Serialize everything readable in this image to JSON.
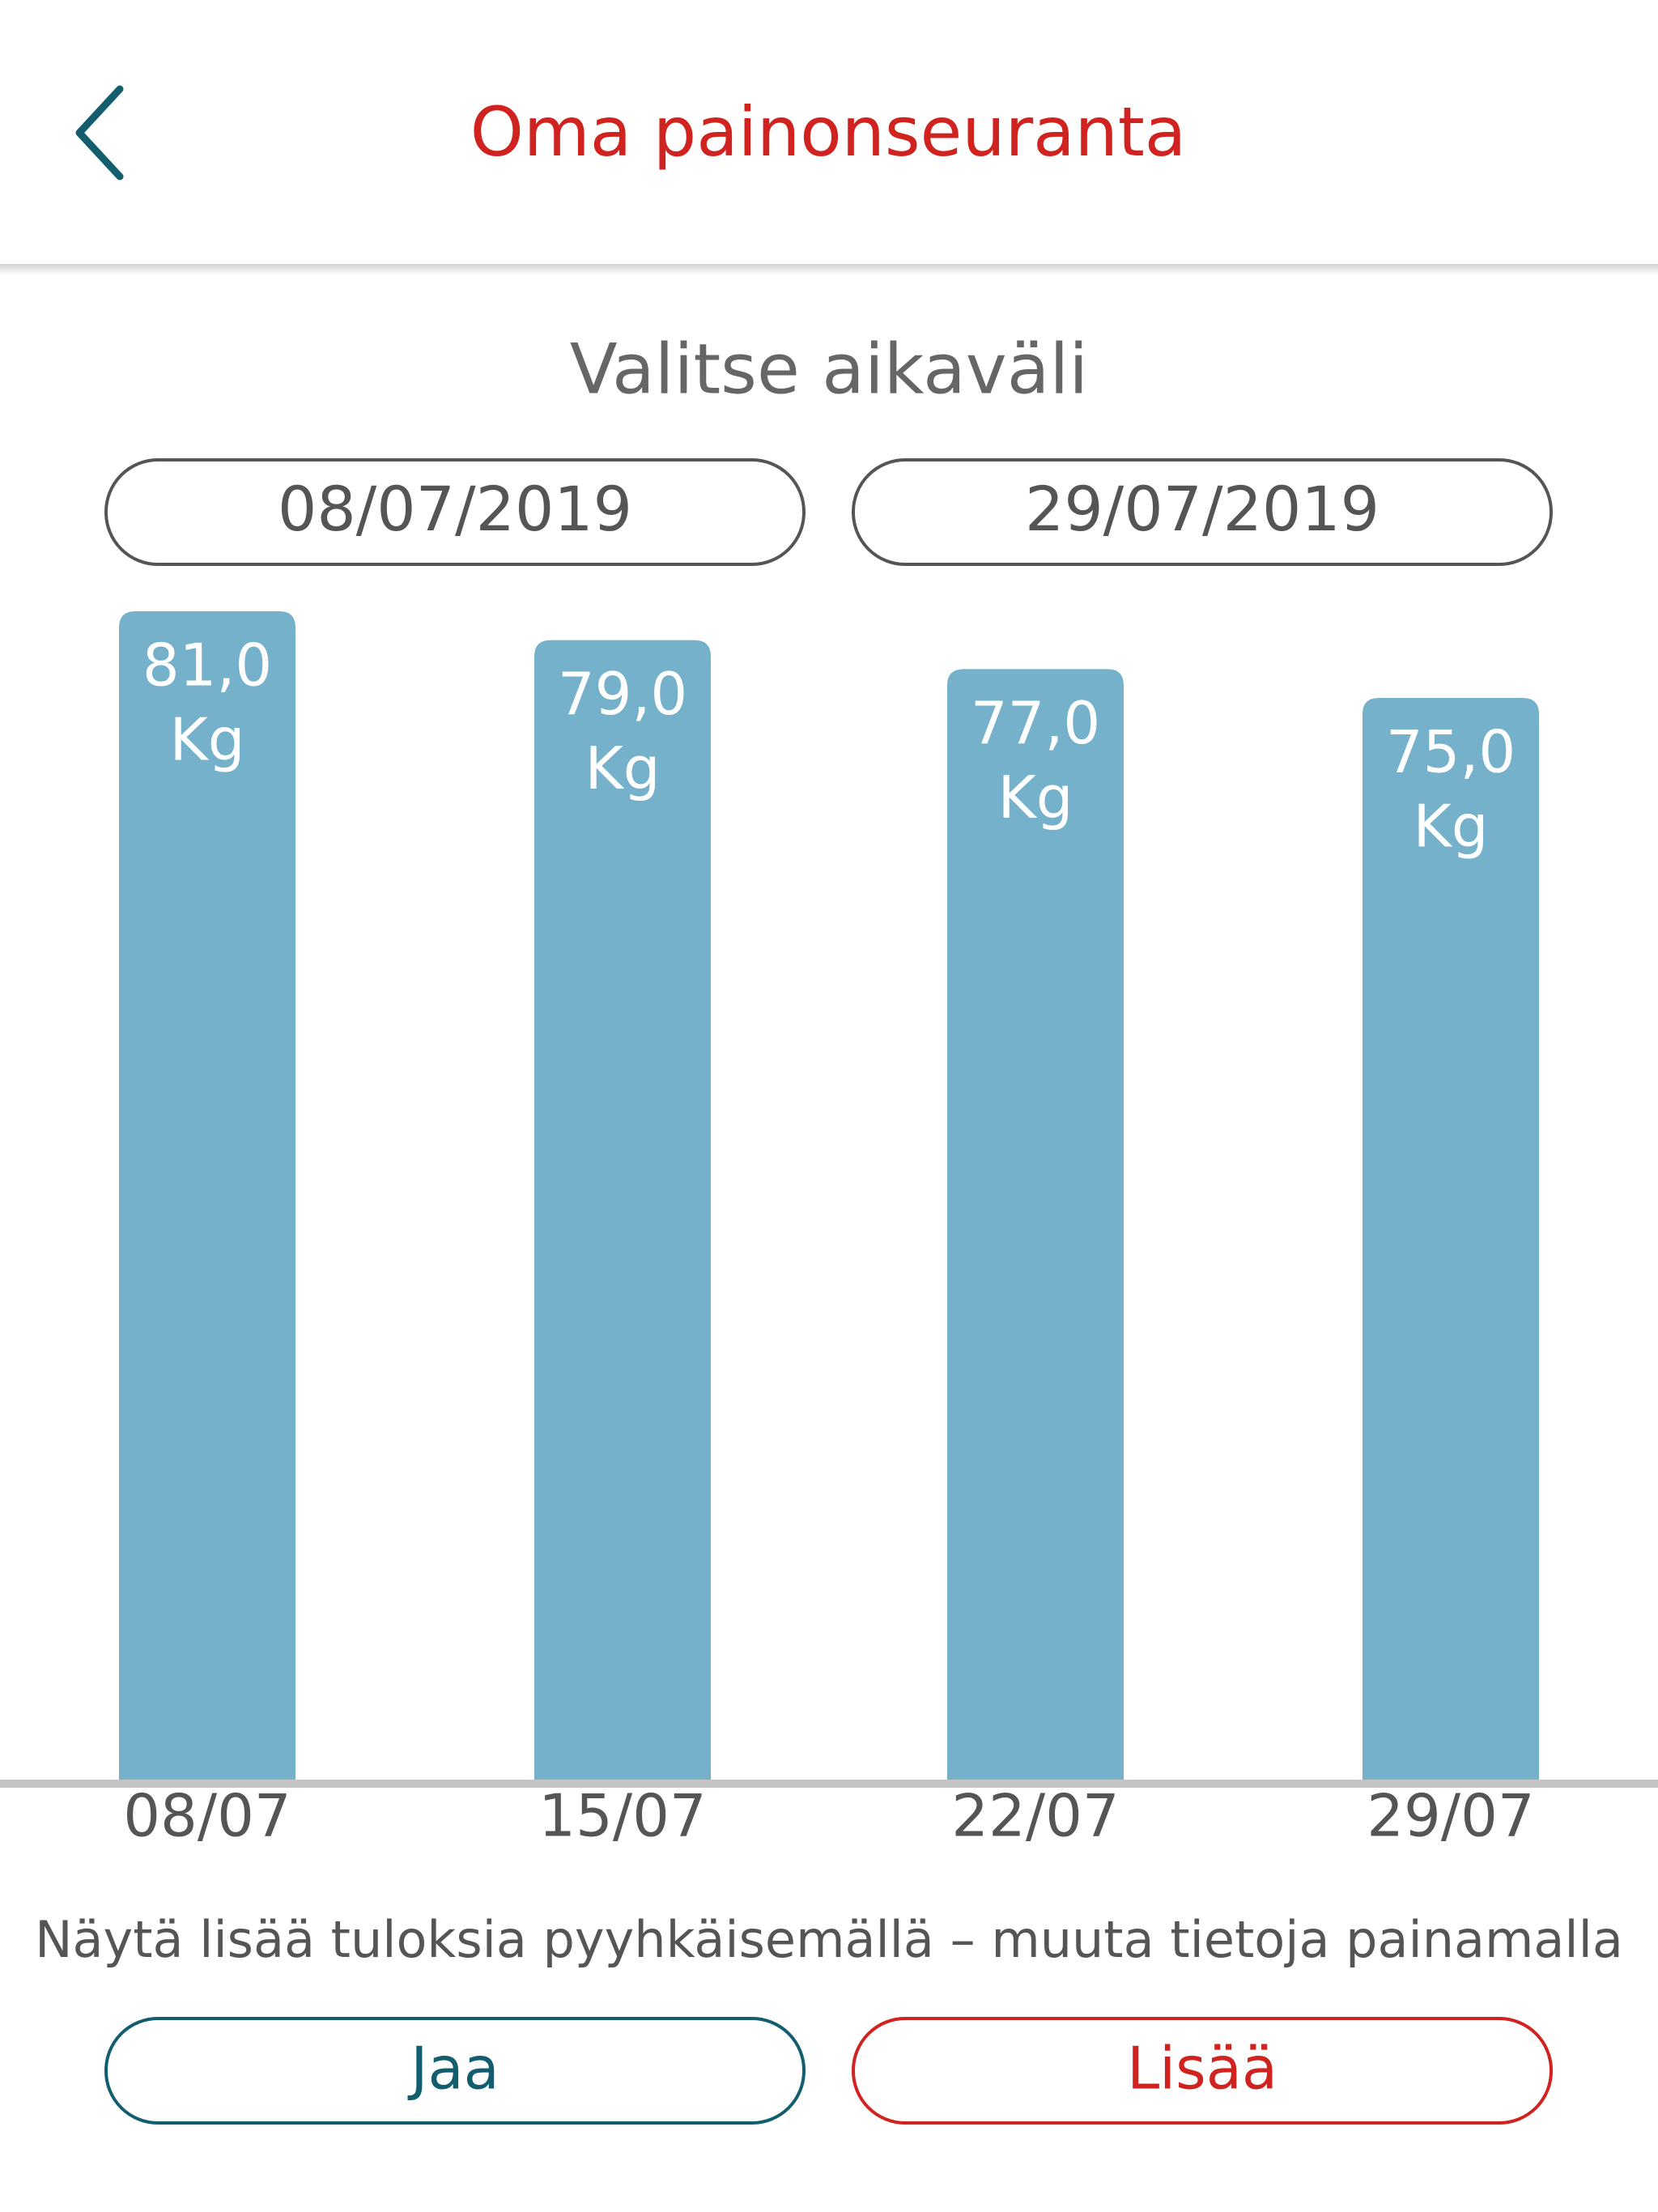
{
  "header": {
    "title": "Oma painonseuranta"
  },
  "range": {
    "label": "Valitse aikaväli",
    "start": "08/07/2019",
    "end": "29/07/2019"
  },
  "chart_data": {
    "type": "bar",
    "categories": [
      "08/07",
      "15/07",
      "22/07",
      "29/07"
    ],
    "values": [
      81,
      79,
      77,
      75
    ],
    "value_labels": [
      "81,0",
      "79,0",
      "77,0",
      "75,0"
    ],
    "unit_label": "Kg",
    "color": "#75b1cb",
    "ylim": [
      0,
      81
    ]
  },
  "footer": {
    "hint": "Näytä lisää tuloksia pyyhkäisemällä – muuta tietoja painamalla",
    "buttons": [
      "Jaa",
      "Lisää"
    ]
  }
}
